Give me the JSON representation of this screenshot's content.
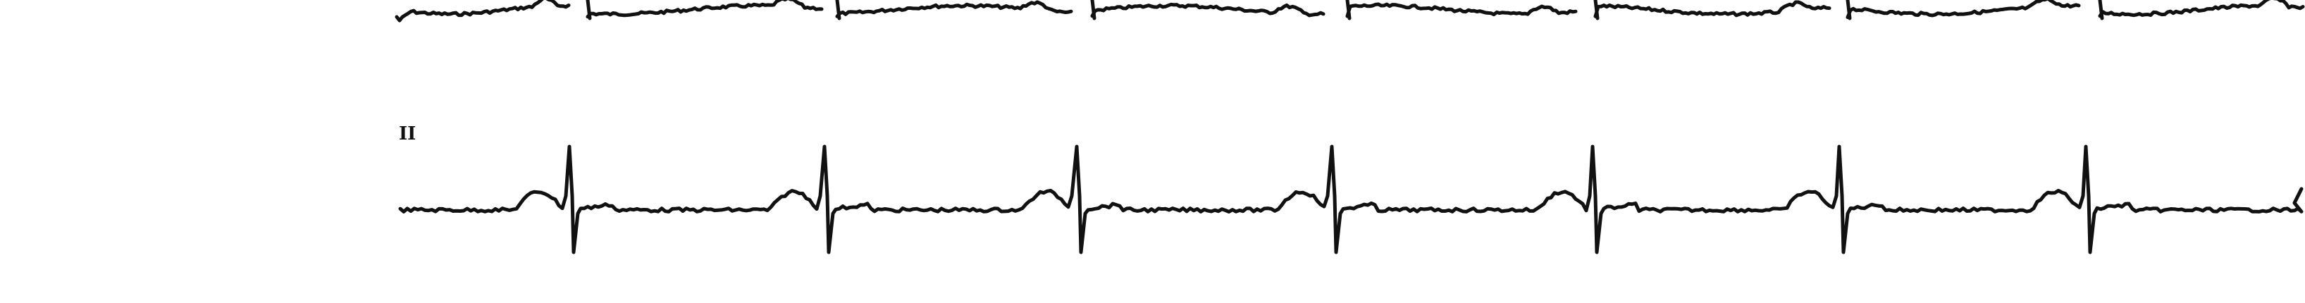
{
  "strip": {
    "leads": [
      {
        "id": "upper",
        "label": "",
        "beats": 8
      },
      {
        "id": "lower",
        "label": "II",
        "beats": 7
      }
    ]
  },
  "colors": {
    "background": "#ffffff",
    "trace": "#111111"
  }
}
